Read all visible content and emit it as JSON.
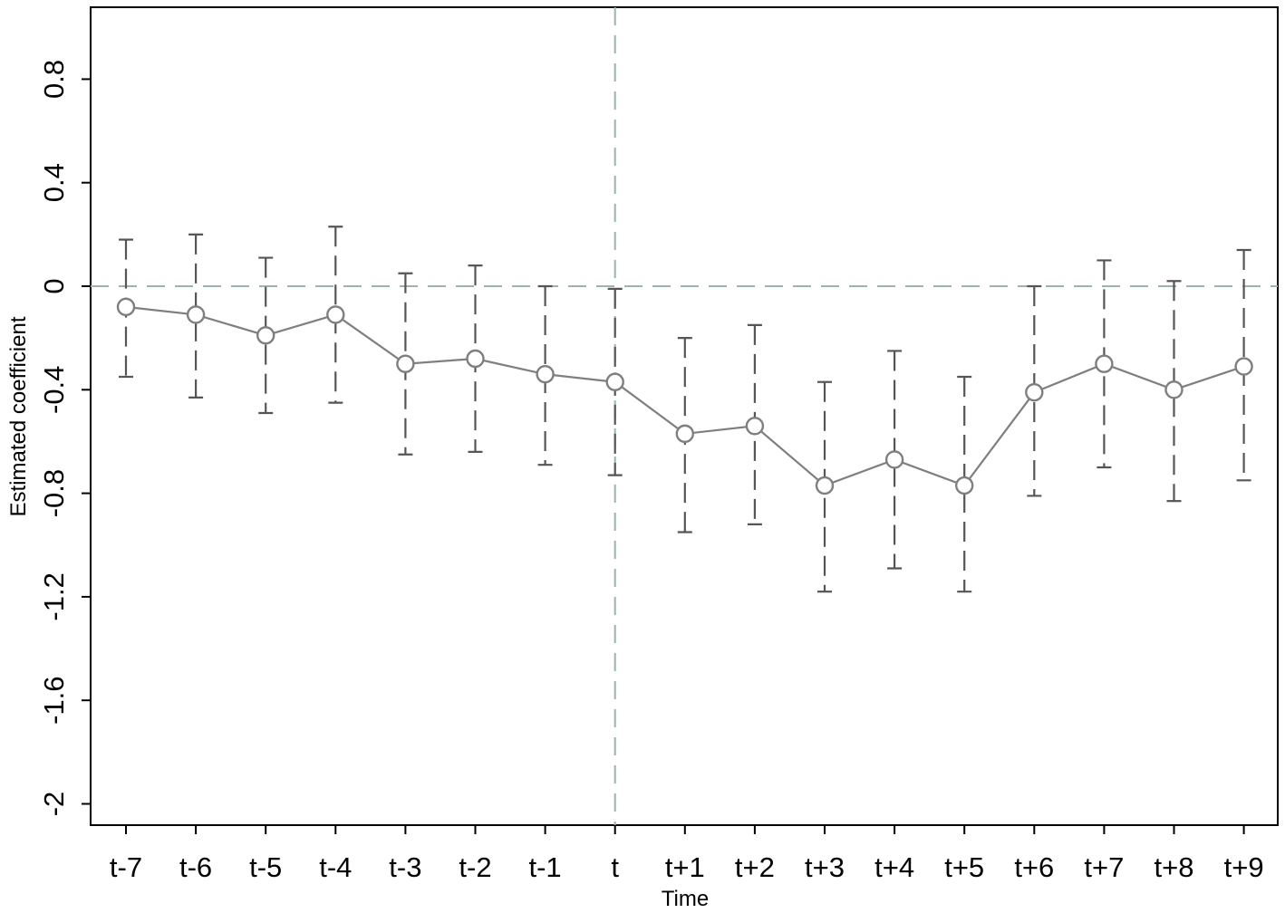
{
  "chart_data": {
    "type": "line",
    "title": "",
    "xlabel": "Time",
    "ylabel": "Estimated coefficient",
    "categories": [
      "t-7",
      "t-6",
      "t-5",
      "t-4",
      "t-3",
      "t-2",
      "t-1",
      "t",
      "t+1",
      "t+2",
      "t+3",
      "t+4",
      "t+5",
      "t+6",
      "t+7",
      "t+8",
      "t+9"
    ],
    "series": [
      {
        "values": [
          -0.08,
          -0.11,
          -0.19,
          -0.11,
          -0.3,
          -0.28,
          -0.34,
          -0.37,
          -0.57,
          -0.54,
          -0.77,
          -0.67,
          -0.77,
          -0.41,
          -0.3,
          -0.4,
          -0.31
        ],
        "ci_upper": [
          0.18,
          0.2,
          0.11,
          0.23,
          0.05,
          0.08,
          0.0,
          -0.01,
          -0.2,
          -0.15,
          -0.37,
          -0.25,
          -0.35,
          0.0,
          0.1,
          0.02,
          0.14
        ],
        "ci_lower": [
          -0.35,
          -0.43,
          -0.49,
          -0.45,
          -0.65,
          -0.64,
          -0.69,
          -0.73,
          -0.95,
          -0.92,
          -1.18,
          -1.09,
          -1.18,
          -0.81,
          -0.7,
          -0.83,
          -0.75
        ]
      }
    ],
    "yticks": [
      "0.8",
      "0.4",
      "0",
      "-0.4",
      "-0.8",
      "-1.2",
      "-1.6",
      "-2"
    ],
    "ylim": [
      -2.08,
      1.08
    ],
    "reference_lines": {
      "y": 0,
      "x_category": "t"
    },
    "grid": false,
    "legend": "none",
    "colors": {
      "series": "#7f7f7f",
      "ci": "#555555",
      "reference": "#9bb5ad",
      "axis": "#000000"
    }
  }
}
